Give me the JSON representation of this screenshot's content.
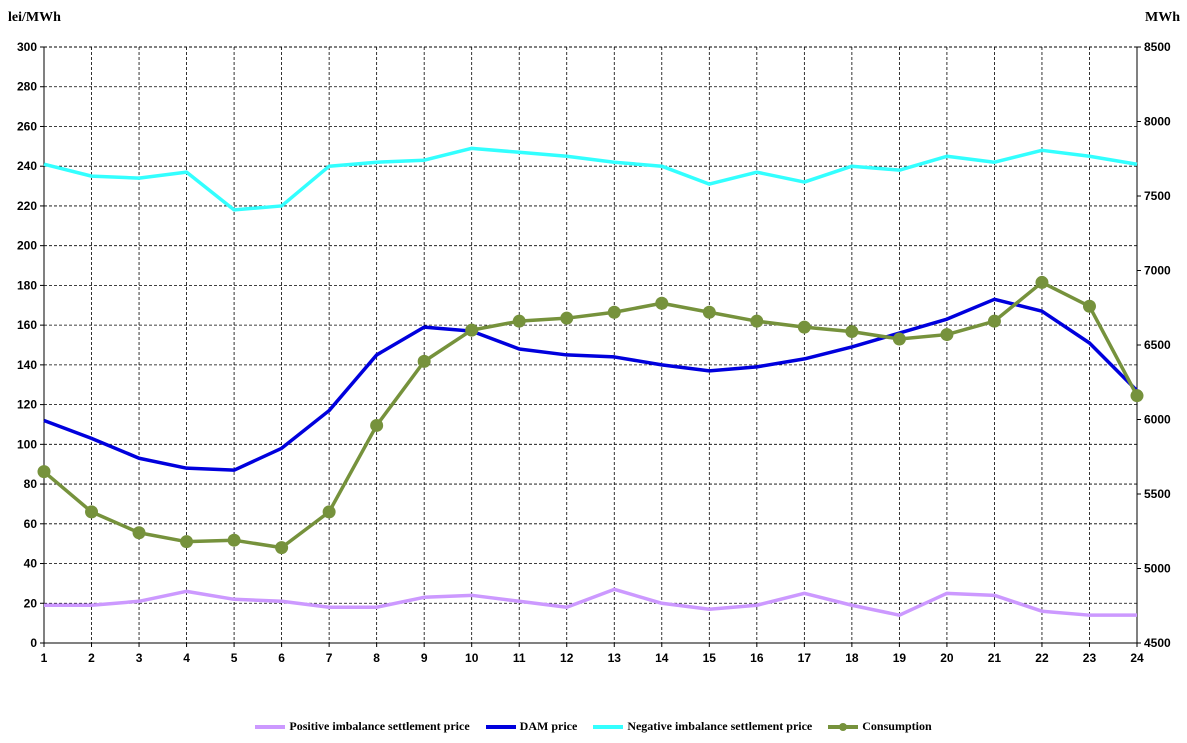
{
  "chart_data": {
    "type": "line",
    "title": "",
    "ylabel": "lei/MWh",
    "y2label": "MWh",
    "ylim": [
      0,
      300
    ],
    "yticks": [
      0,
      20,
      40,
      60,
      80,
      100,
      120,
      140,
      160,
      180,
      200,
      220,
      240,
      260,
      280,
      300
    ],
    "y2lim": [
      4500,
      8500
    ],
    "y2ticks": [
      4500,
      5000,
      5500,
      6000,
      6500,
      7000,
      7500,
      8000,
      8500
    ],
    "x": [
      1,
      2,
      3,
      4,
      5,
      6,
      7,
      8,
      9,
      10,
      11,
      12,
      13,
      14,
      15,
      16,
      17,
      18,
      19,
      20,
      21,
      22,
      23,
      24
    ],
    "grid": true,
    "legend_position": "bottom",
    "series": [
      {
        "name": "Positive imbalance settlement price",
        "axis": "left",
        "color": "#CC99FF",
        "marker": false,
        "values": [
          19,
          19,
          21,
          26,
          22,
          21,
          18,
          18,
          23,
          24,
          21,
          18,
          27,
          20,
          17,
          19,
          25,
          19,
          14,
          25,
          24,
          16,
          14,
          14
        ]
      },
      {
        "name": "DAM price",
        "axis": "left",
        "color": "#0000DD",
        "marker": false,
        "values": [
          112,
          103,
          93,
          88,
          87,
          98,
          117,
          145,
          159,
          157,
          148,
          145,
          144,
          140,
          137,
          139,
          143,
          149,
          156,
          163,
          173,
          167,
          151,
          127
        ]
      },
      {
        "name": "Negative imbalance settlement price",
        "axis": "left",
        "color": "#33FFFF",
        "marker": false,
        "values": [
          241,
          235,
          234,
          237,
          218,
          220,
          240,
          242,
          243,
          249,
          247,
          245,
          242,
          240,
          231,
          237,
          232,
          240,
          238,
          245,
          242,
          248,
          245,
          241
        ]
      },
      {
        "name": "Consumption",
        "axis": "right",
        "color": "#76923C",
        "marker": true,
        "values": [
          5650,
          5380,
          5240,
          5180,
          5190,
          5140,
          5380,
          5960,
          6390,
          6600,
          6660,
          6680,
          6720,
          6780,
          6720,
          6660,
          6620,
          6590,
          6540,
          6570,
          6660,
          6920,
          6760,
          6160
        ]
      }
    ]
  }
}
